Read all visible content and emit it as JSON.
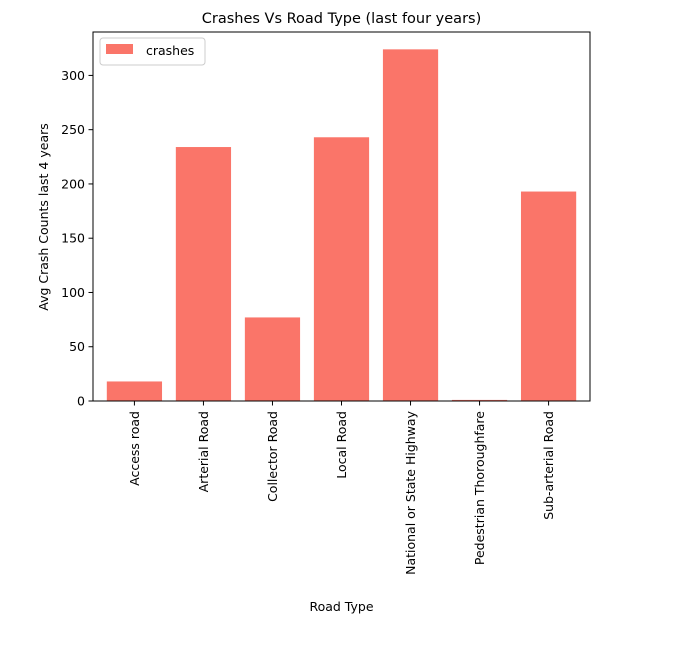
{
  "chart_data": {
    "type": "bar",
    "title": "Crashes Vs Road Type (last four years)",
    "xlabel": "Road Type",
    "ylabel": "Avg Crash Counts last 4 years",
    "categories": [
      "Access road",
      "Arterial Road",
      "Collector Road",
      "Local Road",
      "National or State Highway",
      "Pedestrian Thoroughfare",
      "Sub-arterial Road"
    ],
    "series": [
      {
        "name": "crashes",
        "values": [
          18,
          234,
          77,
          243,
          324,
          1,
          193
        ]
      }
    ],
    "ylim": [
      0,
      340
    ],
    "yticks": [
      0,
      50,
      100,
      150,
      200,
      250,
      300
    ],
    "bar_color": "#fa7569",
    "grid": false,
    "legend_position": "top-left"
  }
}
